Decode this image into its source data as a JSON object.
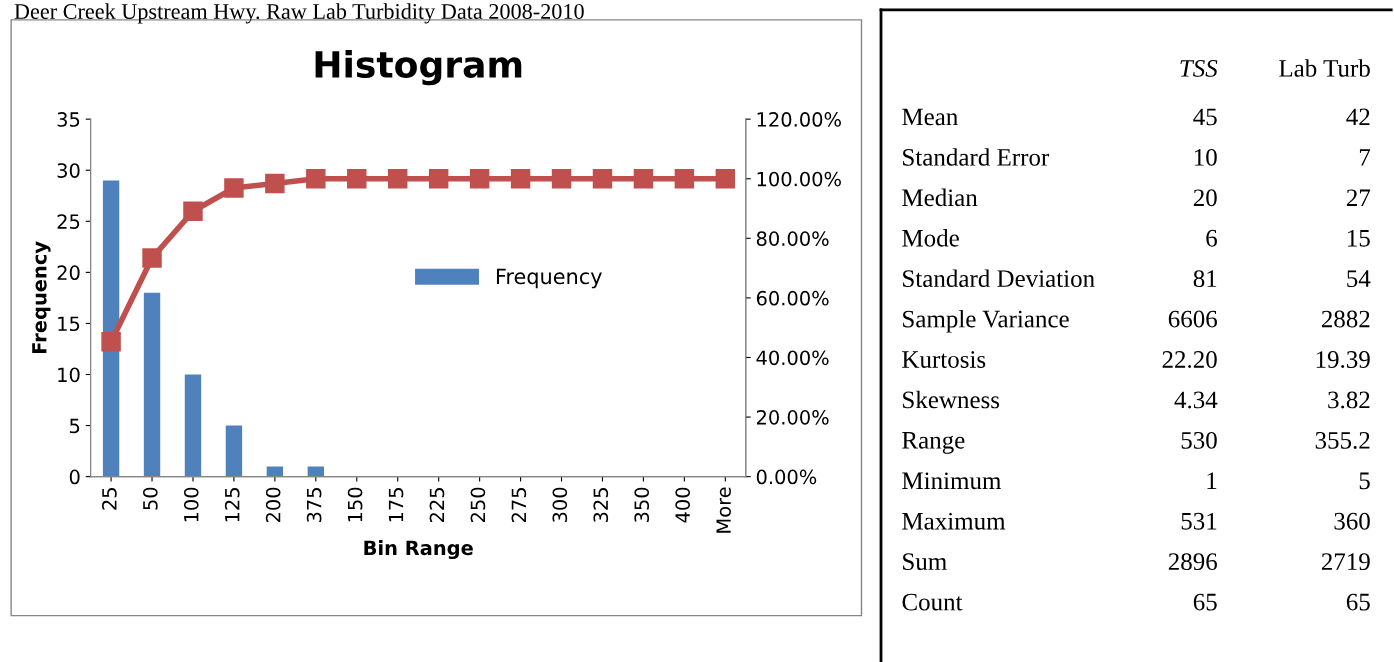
{
  "chart_data": [
    {
      "type": "bar",
      "title": "Histogram",
      "xlabel": "Bin Range",
      "ylabel": "Frequency",
      "annotations": [
        "Deer Creek Upstream Hwy. Raw Lab Turbidity Data 2008-2010"
      ],
      "categories": [
        "25",
        "50",
        "100",
        "125",
        "200",
        "375",
        "150",
        "175",
        "225",
        "250",
        "275",
        "300",
        "325",
        "350",
        "400",
        "More"
      ],
      "series": [
        {
          "name": "Frequency",
          "type": "bar",
          "color": "#4f81bd",
          "values": [
            29,
            18,
            10,
            5,
            1,
            1,
            0,
            0,
            0,
            0,
            0,
            0,
            0,
            0,
            0,
            0
          ]
        },
        {
          "type": "line",
          "axis": "y2",
          "color": "#c0504d",
          "marker": "square",
          "values": [
            45.3,
            73.4,
            89.1,
            96.9,
            98.4,
            100,
            100,
            100,
            100,
            100,
            100,
            100,
            100,
            100,
            100,
            100
          ]
        }
      ],
      "ylim": [
        0,
        35
      ],
      "yticks": [
        0,
        5,
        10,
        15,
        20,
        25,
        30,
        35
      ],
      "y2lim": [
        0,
        120
      ],
      "y2ticks": [
        {
          "value": 0,
          "label": "0.00%"
        },
        {
          "value": 20,
          "label": "20.00%"
        },
        {
          "value": 40,
          "label": "40.00%"
        },
        {
          "value": 60,
          "label": "60.00%"
        },
        {
          "value": 80,
          "label": "80.00%"
        },
        {
          "value": 100,
          "label": "100.00%"
        },
        {
          "value": 120,
          "label": "120.00%"
        }
      ],
      "grid": false,
      "legend": "right"
    },
    {
      "type": "other",
      "categories": [
        "TSS",
        "Lab Turb"
      ],
      "y_categories": [
        "Mean",
        "Standard Error",
        "Median",
        "Mode",
        "Standard Deviation",
        "Sample Variance",
        "Kurtosis",
        "Skewness",
        "Range",
        "Minimum",
        "Maximum",
        "Sum",
        "Count"
      ],
      "cell_labels": [
        [
          "45",
          "42"
        ],
        [
          "10",
          "7"
        ],
        [
          "20",
          "27"
        ],
        [
          "6",
          "15"
        ],
        [
          "81",
          "54"
        ],
        [
          "6606",
          "2882"
        ],
        [
          "22.20",
          "19.39"
        ],
        [
          "4.34",
          "3.82"
        ],
        [
          "530",
          "355.2"
        ],
        [
          "1",
          "5"
        ],
        [
          "531",
          "360"
        ],
        [
          "2896",
          "2719"
        ],
        [
          "65",
          "65"
        ]
      ]
    }
  ]
}
